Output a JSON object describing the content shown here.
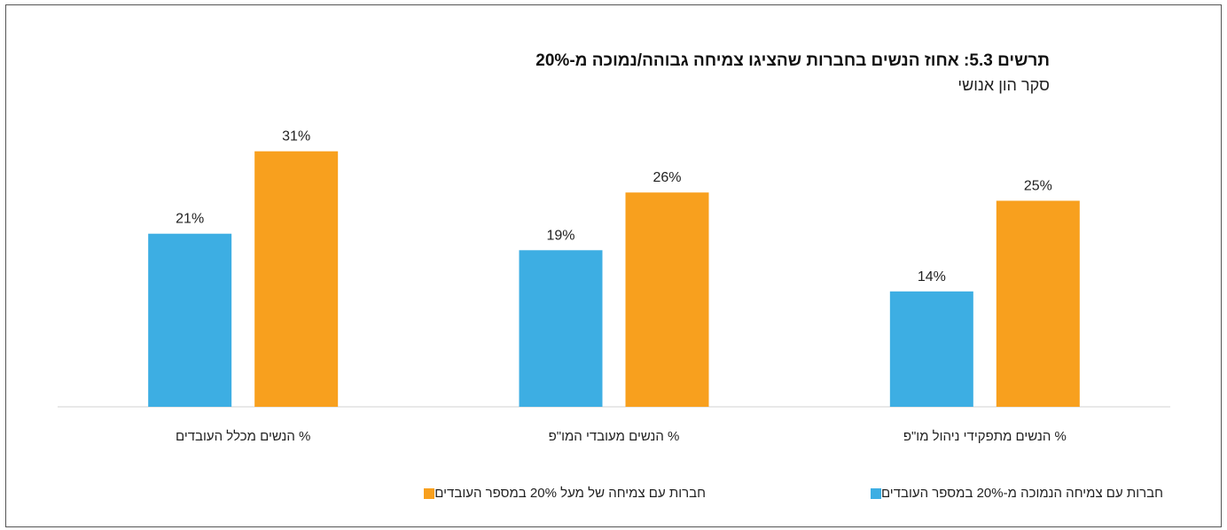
{
  "chart_data": {
    "type": "bar",
    "title": "תרשים 5.3: אחוז הנשים בחברות שהציגו צמיחה גבוהה/נמוכה מ-20%",
    "subtitle": "סקר הון אנושי",
    "categories": [
      "% הנשים מתפקידי ניהול מו\"פ",
      "% הנשים מעובדי המו\"פ",
      "% הנשים מכלל העובדים"
    ],
    "category_order": "right-to-left",
    "series": [
      {
        "name": "חברות עם צמיחה הנמוכה מ-20% במספר העובדים",
        "values": [
          14,
          19,
          21
        ],
        "labels": [
          "14%",
          "19%",
          "21%"
        ],
        "color": "#3DAEE3"
      },
      {
        "name": "חברות עם צמיחה של מעל 20% במספר העובדים",
        "values": [
          25,
          26,
          31
        ],
        "labels": [
          "25%",
          "26%",
          "31%"
        ],
        "color": "#F8A01E"
      }
    ],
    "ylim": [
      0,
      35
    ],
    "grid": false,
    "legend_position": "bottom"
  }
}
